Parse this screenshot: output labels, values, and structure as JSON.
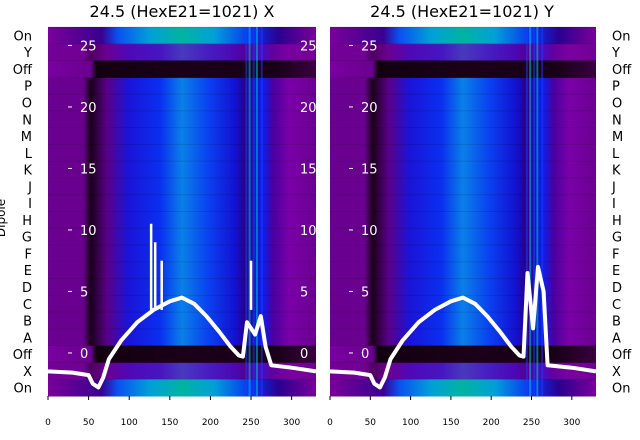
{
  "chart_data": [
    {
      "type": "heatmap",
      "title": "24.5 (HexE21=1021) X",
      "xlim": [
        0,
        330
      ],
      "x_ticks": [
        0,
        50,
        100,
        150,
        200,
        250,
        300
      ],
      "overlay_y_ticks": [
        25,
        20,
        15,
        10,
        5,
        0
      ],
      "overlay_ylim": [
        -3.5,
        26.5
      ],
      "row_labels": [
        "On",
        "Y",
        "Off",
        "P",
        "O",
        "N",
        "M",
        "L",
        "K",
        "J",
        "I",
        "H",
        "G",
        "F",
        "E",
        "D",
        "C",
        "B",
        "A",
        "Off",
        "X",
        "On"
      ],
      "ylabel": "Dipole",
      "overlay_series": {
        "x": [
          0,
          30,
          50,
          55,
          62,
          68,
          75,
          90,
          110,
          130,
          150,
          165,
          180,
          195,
          210,
          225,
          235,
          240,
          245,
          255,
          262,
          268,
          275,
          300,
          330
        ],
        "y": [
          -1.5,
          -1.6,
          -1.8,
          -2.5,
          -2.8,
          -2.0,
          -0.5,
          1.0,
          2.5,
          3.5,
          4.2,
          4.5,
          4.0,
          3.0,
          1.8,
          0.5,
          -0.2,
          -0.3,
          2.5,
          1.5,
          3.0,
          0.5,
          -1.0,
          -1.2,
          -1.5
        ]
      },
      "overlay_spikes": [
        {
          "x": 127,
          "y": 10.5
        },
        {
          "x": 132,
          "y": 9.0
        },
        {
          "x": 140,
          "y": 7.5
        },
        {
          "x": 250,
          "y": 7.5
        }
      ]
    },
    {
      "type": "heatmap",
      "title": "24.5 (HexE21=1021) Y",
      "xlim": [
        0,
        330
      ],
      "x_ticks": [
        0,
        50,
        100,
        150,
        200,
        250,
        300
      ],
      "overlay_y_ticks": [
        25,
        20,
        15,
        10,
        5,
        0
      ],
      "overlay_ylim": [
        -3.5,
        26.5
      ],
      "row_labels": [
        "On",
        "Y",
        "Off",
        "P",
        "O",
        "N",
        "M",
        "L",
        "K",
        "J",
        "I",
        "H",
        "G",
        "F",
        "E",
        "D",
        "C",
        "B",
        "A",
        "Off",
        "X",
        "On"
      ],
      "ylabel": "",
      "overlay_series": {
        "x": [
          0,
          30,
          50,
          55,
          62,
          68,
          75,
          90,
          110,
          130,
          150,
          165,
          180,
          195,
          210,
          225,
          235,
          240,
          245,
          252,
          258,
          265,
          270,
          300,
          330
        ],
        "y": [
          -1.5,
          -1.6,
          -1.8,
          -2.5,
          -2.8,
          -2.0,
          -0.5,
          1.0,
          2.5,
          3.5,
          4.2,
          4.5,
          4.0,
          3.0,
          1.8,
          0.5,
          -0.2,
          -0.3,
          6.5,
          2.0,
          7.0,
          5.0,
          -1.0,
          -1.2,
          -1.5
        ]
      },
      "overlay_spikes": []
    }
  ],
  "colors": {
    "dark": "#140014",
    "purple": "#7a009a",
    "magenta": "#9a00c8",
    "blue": "#0a14e6",
    "sky": "#0090e0",
    "teal": "#00b4a0",
    "overlay": "#ffffff"
  }
}
